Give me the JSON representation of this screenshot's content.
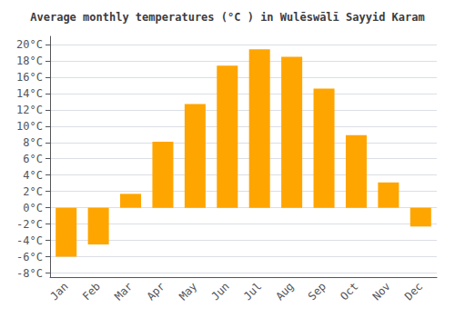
{
  "chart_data": {
    "type": "bar",
    "title": "Average monthly temperatures (°C ) in Wulēswālī Sayyid Karam",
    "categories": [
      "Jan",
      "Feb",
      "Mar",
      "Apr",
      "May",
      "Jun",
      "Jul",
      "Aug",
      "Sep",
      "Oct",
      "Nov",
      "Dec"
    ],
    "values": [
      -6,
      -4.5,
      1.7,
      8.1,
      12.7,
      17.4,
      19.4,
      18.5,
      14.6,
      8.9,
      3.1,
      -2.3
    ],
    "color": "#FFA500",
    "ylim": [
      -8.5,
      21
    ],
    "yticks": [
      {
        "value": -8,
        "label": "-8°C"
      },
      {
        "value": -6,
        "label": "-6°C"
      },
      {
        "value": -4,
        "label": "-4°C"
      },
      {
        "value": -2,
        "label": "-2°C"
      },
      {
        "value": 0,
        "label": "0°C"
      },
      {
        "value": 2,
        "label": "2°C"
      },
      {
        "value": 4,
        "label": "4°C"
      },
      {
        "value": 6,
        "label": "6°C"
      },
      {
        "value": 8,
        "label": "8°C"
      },
      {
        "value": 10,
        "label": "10°C"
      },
      {
        "value": 12,
        "label": "12°C"
      },
      {
        "value": 14,
        "label": "14°C"
      },
      {
        "value": 16,
        "label": "16°C"
      },
      {
        "value": 18,
        "label": "18°C"
      },
      {
        "value": 20,
        "label": "20°C"
      }
    ],
    "grid": true
  }
}
